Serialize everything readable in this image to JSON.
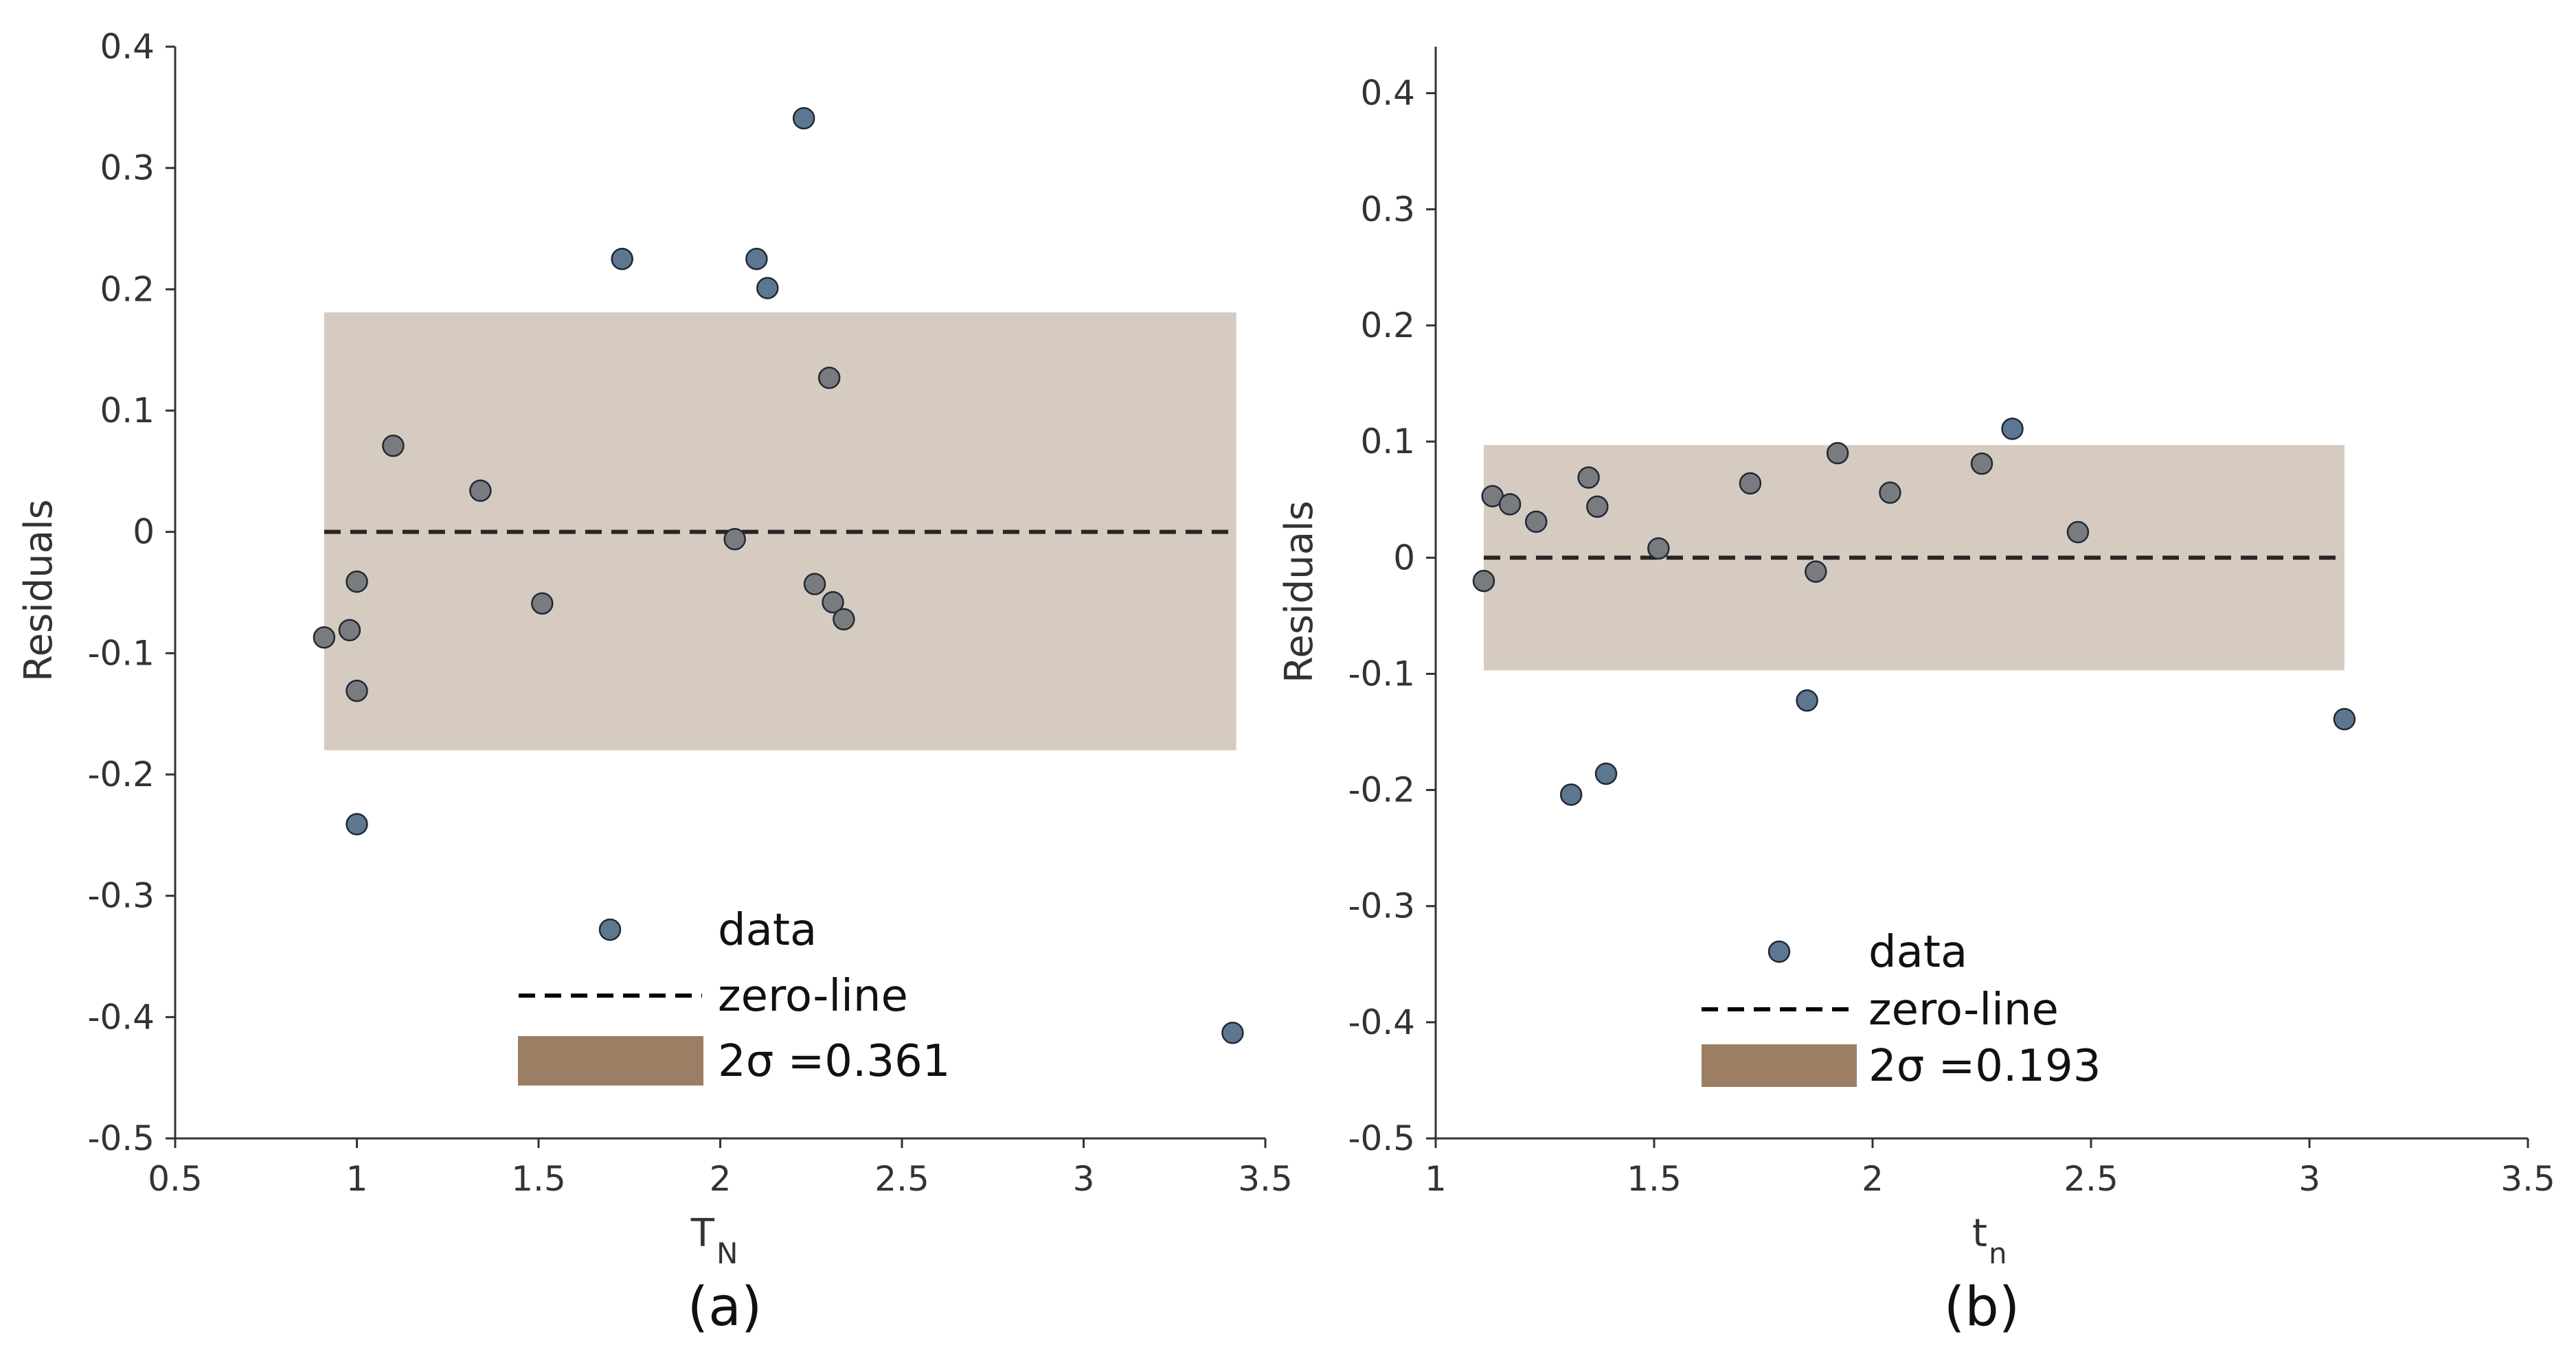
{
  "chart_data": [
    {
      "type": "scatter",
      "panel_label": "(a)",
      "xlabel": "T",
      "xlabel_sub": "N",
      "ylabel": "Residuals",
      "xlim": [
        0.5,
        3.5
      ],
      "ylim": [
        -0.5,
        0.4
      ],
      "xticks": [
        0.5,
        1,
        1.5,
        2,
        2.5,
        3,
        3.5
      ],
      "xtick_labels": [
        "0.5",
        "1",
        "1.5",
        "2",
        "2.5",
        "3",
        "3.5"
      ],
      "yticks": [
        0.4,
        0.3,
        0.2,
        0.1,
        0,
        -0.1,
        -0.2,
        -0.3,
        -0.4,
        -0.5
      ],
      "ytick_labels": [
        "0.4",
        "0.3",
        "0.2",
        "0.1",
        "0",
        "-0.1",
        "-0.2",
        "-0.3",
        "-0.4",
        "-0.5"
      ],
      "band": {
        "x": [
          0.91,
          3.42
        ],
        "y": [
          -0.18,
          0.181
        ]
      },
      "zero_line": {
        "x": [
          0.91,
          3.42
        ],
        "y": 0
      },
      "points": [
        {
          "x": 0.91,
          "y": -0.087
        },
        {
          "x": 0.98,
          "y": -0.081
        },
        {
          "x": 1.0,
          "y": -0.041
        },
        {
          "x": 1.0,
          "y": -0.131
        },
        {
          "x": 1.0,
          "y": -0.241
        },
        {
          "x": 1.1,
          "y": 0.071
        },
        {
          "x": 1.34,
          "y": 0.034
        },
        {
          "x": 1.51,
          "y": -0.059
        },
        {
          "x": 1.73,
          "y": 0.225
        },
        {
          "x": 2.04,
          "y": -0.006
        },
        {
          "x": 2.1,
          "y": 0.225
        },
        {
          "x": 2.13,
          "y": 0.201
        },
        {
          "x": 2.23,
          "y": 0.341
        },
        {
          "x": 2.26,
          "y": -0.043
        },
        {
          "x": 2.3,
          "y": 0.127
        },
        {
          "x": 2.31,
          "y": -0.058
        },
        {
          "x": 2.34,
          "y": -0.072
        },
        {
          "x": 3.41,
          "y": -0.413
        }
      ],
      "legend": {
        "position": "lower-center",
        "entries": [
          "data",
          "zero-line",
          "2σ =0.361"
        ]
      }
    },
    {
      "type": "scatter",
      "panel_label": "(b)",
      "xlabel": "t",
      "xlabel_sub": "n",
      "ylabel": "Residuals",
      "xlim": [
        1,
        3.5
      ],
      "ylim": [
        -0.5,
        0.44
      ],
      "xticks": [
        1,
        1.5,
        2,
        2.5,
        3,
        3.5
      ],
      "xtick_labels": [
        "1",
        "1.5",
        "2",
        "2.5",
        "3",
        "3.5"
      ],
      "yticks": [
        0.4,
        0.3,
        0.2,
        0.1,
        0,
        -0.1,
        -0.2,
        -0.3,
        -0.4,
        -0.5
      ],
      "ytick_labels": [
        "0.4",
        "0.3",
        "0.2",
        "0.1",
        "0",
        "-0.1",
        "-0.2",
        "-0.3",
        "-0.4",
        "-0.5"
      ],
      "band": {
        "x": [
          1.11,
          3.08
        ],
        "y": [
          -0.097,
          0.097
        ]
      },
      "zero_line": {
        "x": [
          1.11,
          3.08
        ],
        "y": 0
      },
      "points": [
        {
          "x": 1.11,
          "y": -0.02
        },
        {
          "x": 1.13,
          "y": 0.053
        },
        {
          "x": 1.17,
          "y": 0.046
        },
        {
          "x": 1.23,
          "y": 0.031
        },
        {
          "x": 1.31,
          "y": -0.204
        },
        {
          "x": 1.35,
          "y": 0.069
        },
        {
          "x": 1.37,
          "y": 0.044
        },
        {
          "x": 1.39,
          "y": -0.186
        },
        {
          "x": 1.51,
          "y": 0.008
        },
        {
          "x": 1.72,
          "y": 0.064
        },
        {
          "x": 1.85,
          "y": -0.123
        },
        {
          "x": 1.87,
          "y": -0.012
        },
        {
          "x": 1.92,
          "y": 0.09
        },
        {
          "x": 2.04,
          "y": 0.056
        },
        {
          "x": 2.25,
          "y": 0.081
        },
        {
          "x": 2.32,
          "y": 0.111
        },
        {
          "x": 2.47,
          "y": 0.022
        },
        {
          "x": 3.08,
          "y": -0.139
        }
      ],
      "legend": {
        "position": "lower-center",
        "entries": [
          "data",
          "zero-line",
          "2σ =0.193"
        ]
      }
    }
  ],
  "colors": {
    "point_fill": "#5d7791",
    "point_fill_in_band": "#7a7b7e",
    "point_stroke": "#1f2a36",
    "band_fill": "#d6cbc0",
    "legend_band_fill": "#9b7e63",
    "zero_line": "#2a2522",
    "axis": "#333333"
  }
}
